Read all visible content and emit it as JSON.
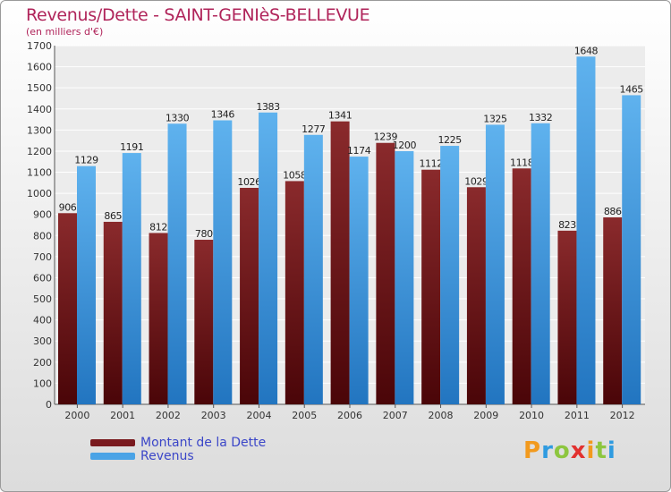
{
  "title": "Revenus/Dette - SAINT-GENIèS-BELLEVUE",
  "subtitle": "(en milliers d'€)",
  "logo_text": "Proxiti",
  "chart_data": {
    "type": "bar",
    "categories": [
      "2000",
      "2001",
      "2002",
      "2003",
      "2004",
      "2005",
      "2006",
      "2007",
      "2008",
      "2009",
      "2010",
      "2011",
      "2012"
    ],
    "series": [
      {
        "name": "Montant de la Dette",
        "color": "#7a1a1e",
        "values": [
          906,
          865,
          812,
          780,
          1026,
          1058,
          1341,
          1239,
          1112,
          1029,
          1118,
          823,
          886
        ]
      },
      {
        "name": "Revenus",
        "color": "#4aa3e6",
        "values": [
          1129,
          1191,
          1330,
          1346,
          1383,
          1277,
          1174,
          1200,
          1225,
          1325,
          1332,
          1648,
          1465
        ]
      }
    ],
    "ylim": [
      0,
      1700
    ],
    "ytick_step": 100,
    "grid": true,
    "legend_position": "bottom-left"
  }
}
